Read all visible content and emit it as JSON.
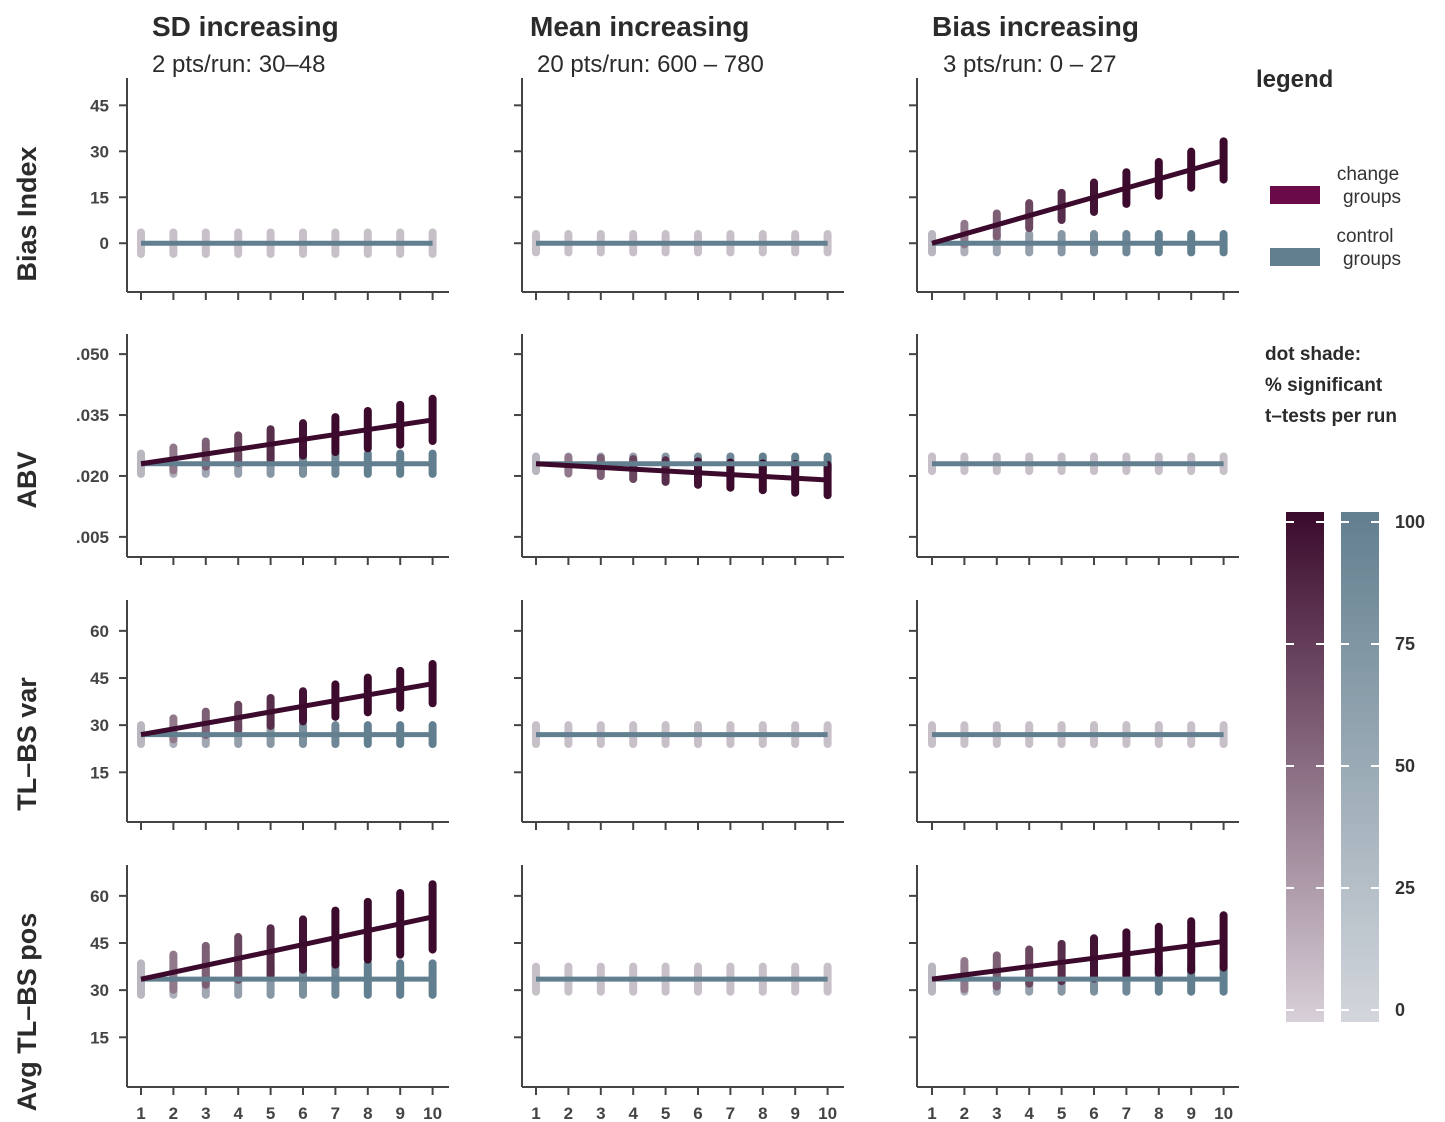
{
  "colors": {
    "change": "#5a0a3e",
    "change_dark": "#3b0a2c",
    "control": "#627f8f",
    "neutral": "#c8c0c8",
    "axis": "#444444"
  },
  "columns": [
    {
      "title": "SD increasing",
      "subtitle": "2 pts/run: 30–48"
    },
    {
      "title": "Mean increasing",
      "subtitle": "20 pts/run: 600 – 780"
    },
    {
      "title": "Bias increasing",
      "subtitle": "3 pts/run: 0 – 27"
    }
  ],
  "rows": [
    {
      "label": "Bias Index",
      "ticks": [
        "45",
        "30",
        "15",
        "0"
      ],
      "tick_values": [
        45,
        30,
        15,
        0
      ],
      "ylim": [
        -12,
        50
      ]
    },
    {
      "label": "ABV",
      "ticks": [
        ".050",
        ".035",
        ".020",
        ".005"
      ],
      "tick_values": [
        0.05,
        0.035,
        0.02,
        0.005
      ],
      "ylim": [
        0.003,
        0.052
      ]
    },
    {
      "label": "TL–BS var",
      "ticks": [
        "60",
        "45",
        "30",
        "15"
      ],
      "tick_values": [
        60,
        45,
        30,
        15
      ],
      "ylim": [
        3,
        66
      ]
    },
    {
      "label": "Avg TL–BS pos",
      "ticks": [
        "60",
        "45",
        "30",
        "15"
      ],
      "tick_values": [
        60,
        45,
        30,
        15
      ],
      "ylim": [
        3,
        66
      ]
    }
  ],
  "legend": {
    "title": "legend",
    "change_label_line1": "change",
    "change_label_line2": "groups",
    "control_label_line1": "control",
    "control_label_line2": "groups",
    "shade_line1": "dot shade:",
    "shade_line2": "% significant",
    "shade_line3": "t–tests per run",
    "colorbar_ticks": [
      "100",
      "75",
      "50",
      "25",
      "0"
    ],
    "colorbar_values": [
      100,
      75,
      50,
      25,
      0
    ]
  },
  "chart_data": [
    {
      "type": "scatter",
      "panel": "SD increasing / Bias Index",
      "x": [
        1,
        2,
        3,
        4,
        5,
        6,
        7,
        8,
        9,
        10
      ],
      "series": [
        {
          "values": [
            0,
            0,
            0,
            0,
            0,
            0,
            0,
            0,
            0,
            0
          ]
        }
      ],
      "change": null,
      "spread": 3.5
    },
    {
      "type": "scatter",
      "panel": "Mean increasing / Bias Index",
      "x": [
        1,
        2,
        3,
        4,
        5,
        6,
        7,
        8,
        9,
        10
      ],
      "series": [
        {
          "values": [
            0,
            0,
            0,
            0,
            0,
            0,
            0,
            0,
            0,
            0
          ]
        }
      ],
      "change": null,
      "spread": 3
    },
    {
      "type": "scatter",
      "panel": "Bias increasing / Bias Index",
      "x": [
        1,
        2,
        3,
        4,
        5,
        6,
        7,
        8,
        9,
        10
      ],
      "series": [
        {
          "values": [
            0,
            0,
            0,
            0,
            0,
            0,
            0,
            0,
            0,
            0
          ]
        },
        {
          "values": [
            0,
            3,
            6,
            9,
            12,
            15,
            18,
            21,
            24,
            27
          ]
        }
      ],
      "change": [
        0,
        3,
        6,
        9,
        12,
        15,
        18,
        21,
        24,
        27
      ],
      "spread": 3
    },
    {
      "type": "scatter",
      "panel": "SD increasing / ABV",
      "x": [
        1,
        2,
        3,
        4,
        5,
        6,
        7,
        8,
        9,
        10
      ],
      "series": [
        {
          "values": [
            0.023,
            0.023,
            0.023,
            0.023,
            0.023,
            0.023,
            0.023,
            0.023,
            0.023,
            0.023
          ]
        },
        {
          "values": [
            0.023,
            0.0242,
            0.0254,
            0.0266,
            0.0278,
            0.029,
            0.0302,
            0.0314,
            0.0326,
            0.0338
          ]
        }
      ],
      "change": [
        0.023,
        0.0242,
        0.0254,
        0.0266,
        0.0278,
        0.029,
        0.0302,
        0.0314,
        0.0326,
        0.0338
      ],
      "spread": 0.0025
    },
    {
      "type": "scatter",
      "panel": "Mean increasing / ABV",
      "x": [
        1,
        2,
        3,
        4,
        5,
        6,
        7,
        8,
        9,
        10
      ],
      "series": [
        {
          "values": [
            0.023,
            0.023,
            0.023,
            0.023,
            0.023,
            0.023,
            0.023,
            0.023,
            0.023,
            0.023
          ]
        },
        {
          "values": [
            0.023,
            0.0226,
            0.0222,
            0.0217,
            0.0212,
            0.0207,
            0.0202,
            0.0198,
            0.0194,
            0.019
          ]
        }
      ],
      "change": [
        0.023,
        0.0226,
        0.0222,
        0.0217,
        0.0212,
        0.0207,
        0.0202,
        0.0198,
        0.0194,
        0.019
      ],
      "spread": 0.0018
    },
    {
      "type": "scatter",
      "panel": "Bias increasing / ABV",
      "x": [
        1,
        2,
        3,
        4,
        5,
        6,
        7,
        8,
        9,
        10
      ],
      "series": [
        {
          "values": [
            0.023,
            0.023,
            0.023,
            0.023,
            0.023,
            0.023,
            0.023,
            0.023,
            0.023,
            0.023
          ]
        }
      ],
      "change": null,
      "spread": 0.0018
    },
    {
      "type": "scatter",
      "panel": "SD increasing / TL–BS var",
      "x": [
        1,
        2,
        3,
        4,
        5,
        6,
        7,
        8,
        9,
        10
      ],
      "series": [
        {
          "values": [
            27,
            27,
            27,
            27,
            27,
            27,
            27,
            27,
            27,
            27
          ]
        },
        {
          "values": [
            27,
            28.8,
            30.6,
            32.4,
            34.2,
            36,
            37.8,
            39.6,
            41.4,
            43.2
          ]
        }
      ],
      "change": [
        27,
        28.8,
        30.6,
        32.4,
        34.2,
        36,
        37.8,
        39.6,
        41.4,
        43.2
      ],
      "spread": 3
    },
    {
      "type": "scatter",
      "panel": "Mean increasing / TL–BS var",
      "x": [
        1,
        2,
        3,
        4,
        5,
        6,
        7,
        8,
        9,
        10
      ],
      "series": [
        {
          "values": [
            27,
            27,
            27,
            27,
            27,
            27,
            27,
            27,
            27,
            27
          ]
        }
      ],
      "change": null,
      "spread": 3
    },
    {
      "type": "scatter",
      "panel": "Bias increasing / TL–BS var",
      "x": [
        1,
        2,
        3,
        4,
        5,
        6,
        7,
        8,
        9,
        10
      ],
      "series": [
        {
          "values": [
            27,
            27,
            27,
            27,
            27,
            27,
            27,
            27,
            27,
            27
          ]
        }
      ],
      "change": null,
      "spread": 3
    },
    {
      "type": "scatter",
      "panel": "SD increasing / Avg TL–BS pos",
      "x": [
        1,
        2,
        3,
        4,
        5,
        6,
        7,
        8,
        9,
        10
      ],
      "series": [
        {
          "values": [
            33.5,
            33.5,
            33.5,
            33.5,
            33.5,
            33.5,
            33.5,
            33.5,
            33.5,
            33.5
          ]
        },
        {
          "values": [
            33.5,
            35.7,
            37.9,
            40.1,
            42.3,
            44.5,
            46.7,
            48.9,
            51.1,
            53.3
          ]
        }
      ],
      "change": [
        33.5,
        35.7,
        37.9,
        40.1,
        42.3,
        44.5,
        46.7,
        48.9,
        51.1,
        53.3
      ],
      "spread": 5
    },
    {
      "type": "scatter",
      "panel": "Mean increasing / Avg TL–BS pos",
      "x": [
        1,
        2,
        3,
        4,
        5,
        6,
        7,
        8,
        9,
        10
      ],
      "series": [
        {
          "values": [
            33.5,
            33.5,
            33.5,
            33.5,
            33.5,
            33.5,
            33.5,
            33.5,
            33.5,
            33.5
          ]
        }
      ],
      "change": null,
      "spread": 4
    },
    {
      "type": "scatter",
      "panel": "Bias increasing / Avg TL–BS pos",
      "x": [
        1,
        2,
        3,
        4,
        5,
        6,
        7,
        8,
        9,
        10
      ],
      "series": [
        {
          "values": [
            33.5,
            33.5,
            33.5,
            33.5,
            33.5,
            33.5,
            33.5,
            33.5,
            33.5,
            33.5
          ]
        },
        {
          "values": [
            33.5,
            34.8,
            36.1,
            37.5,
            38.8,
            40.1,
            41.5,
            42.8,
            44.1,
            45.5
          ]
        }
      ],
      "change": [
        33.5,
        34.8,
        36.1,
        37.5,
        38.8,
        40.1,
        41.5,
        42.8,
        44.1,
        45.5
      ],
      "spread": 4
    }
  ],
  "xaxis": {
    "ticks": [
      "1",
      "2",
      "3",
      "4",
      "5",
      "6",
      "7",
      "8",
      "9",
      "10"
    ]
  }
}
